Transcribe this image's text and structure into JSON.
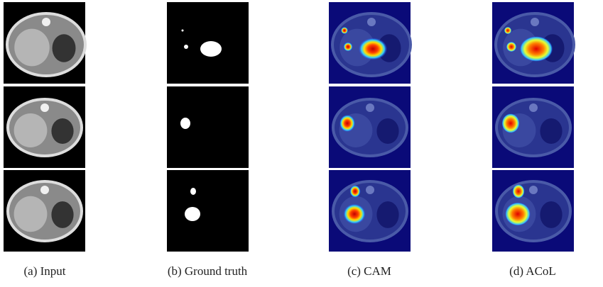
{
  "captions": [
    "(a) Input",
    "(b) Ground truth",
    "(c) CAM",
    "(d) ACoL"
  ]
}
